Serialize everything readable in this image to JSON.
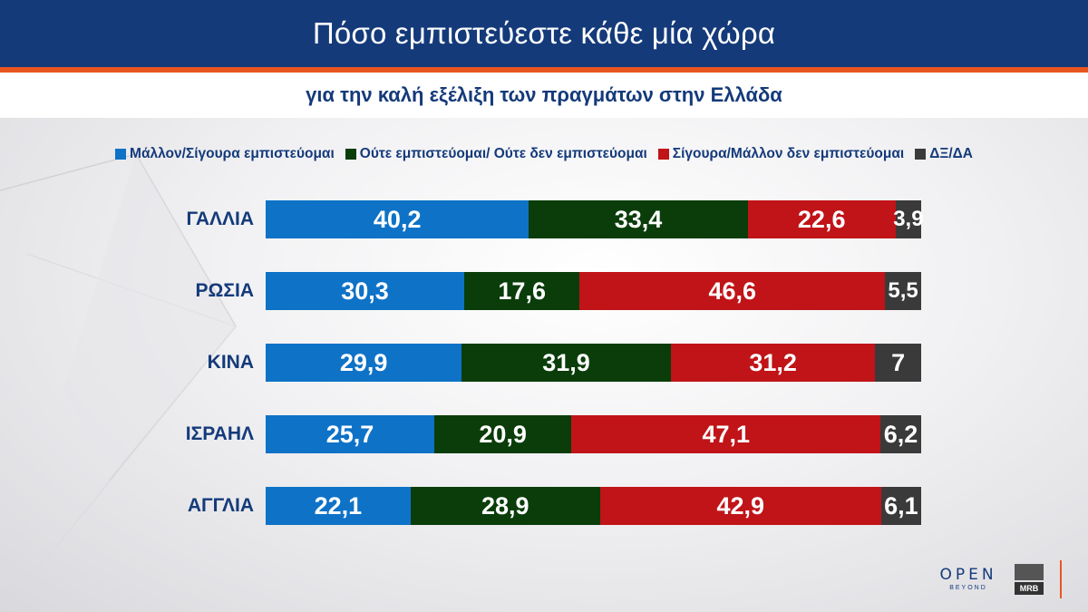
{
  "header": {
    "title": "Πόσο εμπιστεύεστε κάθε μία χώρα"
  },
  "subheader": {
    "title": "για την καλή εξέλιξη των πραγμάτων στην Ελλάδα"
  },
  "colors": {
    "blue": "#0e72c7",
    "green": "#0a3d0a",
    "red": "#c01418",
    "dark": "#3a3a3a",
    "navy": "#143a7a",
    "orange": "#e8551f"
  },
  "logos": {
    "open": "OPEN",
    "beyond": "BEYOND",
    "mrb": "MRB"
  },
  "chart_data": {
    "type": "bar",
    "orientation": "horizontal",
    "stacked": true,
    "title": "Πόσο εμπιστεύεστε κάθε μία χώρα",
    "subtitle": "για την καλή εξέλιξη των πραγμάτων στην Ελλάδα",
    "categories": [
      "ΓΑΛΛΙΑ",
      "ΡΩΣΙΑ",
      "ΚΙΝΑ",
      "ΙΣΡΑΗΛ",
      "ΑΓΓΛΙΑ"
    ],
    "series": [
      {
        "name": "Μάλλον/Σίγουρα εμπιστεύομαι",
        "color": "#0e72c7",
        "values": [
          40.2,
          30.3,
          29.9,
          25.7,
          22.1
        ],
        "labels": [
          "40,2",
          "30,3",
          "29,9",
          "25,7",
          "22,1"
        ]
      },
      {
        "name": "Ούτε εμπιστεύομαι/ Ούτε δεν εμπιστεύομαι",
        "color": "#0a3d0a",
        "values": [
          33.4,
          17.6,
          31.9,
          20.9,
          28.9
        ],
        "labels": [
          "33,4",
          "17,6",
          "31,9",
          "20,9",
          "28,9"
        ]
      },
      {
        "name": "Σίγουρα/Μάλλον δεν εμπιστεύομαι",
        "color": "#c01418",
        "values": [
          22.6,
          46.6,
          31.2,
          47.1,
          42.9
        ],
        "labels": [
          "22,6",
          "46,6",
          "31,2",
          "47,1",
          "42,9"
        ]
      },
      {
        "name": "ΔΞ/ΔΑ",
        "color": "#3a3a3a",
        "values": [
          3.9,
          5.5,
          7,
          6.2,
          6.1
        ],
        "labels": [
          "3,9",
          "5,5",
          "7",
          "6,2",
          "6,1"
        ]
      }
    ],
    "xlim": [
      0,
      100
    ],
    "legend": "top",
    "grid": false
  }
}
